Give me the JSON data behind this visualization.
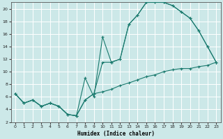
{
  "title": "",
  "xlabel": "Humidex (Indice chaleur)",
  "bg_color": "#cce8e8",
  "grid_color": "#ffffff",
  "line_color": "#1a7a6e",
  "xlim": [
    -0.5,
    23.5
  ],
  "ylim": [
    2,
    21
  ],
  "xticks": [
    0,
    1,
    2,
    3,
    4,
    5,
    6,
    7,
    8,
    9,
    10,
    11,
    12,
    13,
    14,
    15,
    16,
    17,
    18,
    19,
    20,
    21,
    22,
    23
  ],
  "yticks": [
    2,
    4,
    6,
    8,
    10,
    12,
    14,
    16,
    18,
    20
  ],
  "line1_x": [
    0,
    1,
    2,
    3,
    4,
    5,
    6,
    7,
    8,
    9,
    10,
    11,
    12,
    13,
    14,
    15,
    16,
    17,
    18,
    19,
    20,
    21,
    22,
    23
  ],
  "line1_y": [
    6.5,
    5.0,
    5.5,
    4.5,
    5.0,
    4.5,
    3.2,
    3.0,
    9.0,
    6.0,
    15.5,
    11.5,
    12.0,
    17.5,
    19.0,
    21.0,
    21.0,
    21.0,
    20.5,
    19.5,
    18.5,
    16.5,
    14.0,
    11.5
  ],
  "line2_x": [
    0,
    1,
    2,
    3,
    4,
    5,
    6,
    7,
    8,
    9,
    10,
    11,
    12,
    13,
    14,
    15,
    16,
    17,
    18,
    19,
    20,
    21,
    22,
    23
  ],
  "line2_y": [
    6.5,
    5.0,
    5.5,
    4.5,
    5.0,
    4.5,
    3.2,
    3.0,
    5.5,
    6.5,
    11.5,
    11.5,
    12.0,
    17.5,
    19.0,
    21.0,
    21.0,
    21.0,
    20.5,
    19.5,
    18.5,
    16.5,
    14.0,
    11.5
  ],
  "line3_x": [
    0,
    1,
    2,
    3,
    4,
    5,
    6,
    7,
    8,
    9,
    10,
    11,
    12,
    13,
    14,
    15,
    16,
    17,
    18,
    19,
    20,
    21,
    22,
    23
  ],
  "line3_y": [
    6.5,
    5.0,
    5.5,
    4.5,
    5.0,
    4.5,
    3.2,
    3.0,
    5.5,
    6.5,
    6.8,
    7.2,
    7.8,
    8.2,
    8.7,
    9.2,
    9.5,
    10.0,
    10.3,
    10.5,
    10.5,
    10.8,
    11.0,
    11.5
  ]
}
